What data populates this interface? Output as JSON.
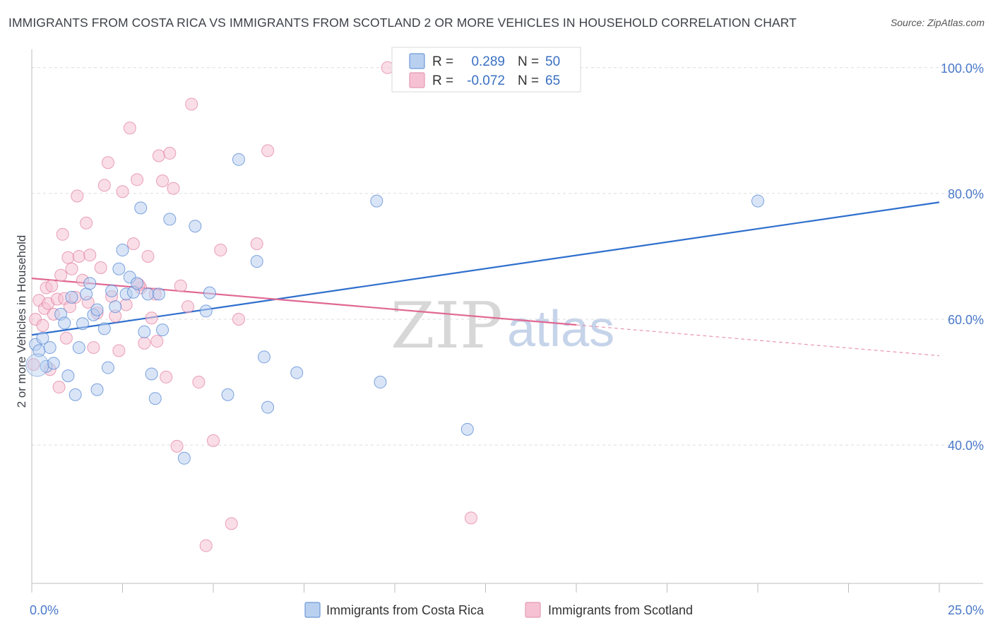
{
  "header": {
    "title": "IMMIGRANTS FROM COSTA RICA VS IMMIGRANTS FROM SCOTLAND 2 OR MORE VEHICLES IN HOUSEHOLD CORRELATION CHART",
    "source": "Source: ZipAtlas.com"
  },
  "legend": {
    "r_label": "R =",
    "n_label": "N =",
    "series": [
      {
        "r": "0.289",
        "n": "50"
      },
      {
        "r": "-0.072",
        "n": "65"
      }
    ]
  },
  "bottom_legend": [
    "Immigrants from Costa Rica",
    "Immigrants from Scotland"
  ],
  "watermark": {
    "zip": "ZIP",
    "atlas": "atlas"
  },
  "colors": {
    "blue": "#4a7fd0",
    "blue_fill": "#b9d0f0",
    "blue_line": "#2f6fcd",
    "pink": "#e07a9e",
    "pink_fill": "#f6c2d3",
    "pink_line": "#e06893"
  },
  "chart_data": {
    "type": "scatter",
    "title": "IMMIGRANTS FROM COSTA RICA VS IMMIGRANTS FROM SCOTLAND 2 OR MORE VEHICLES IN HOUSEHOLD CORRELATION CHART",
    "xlabel": "",
    "ylabel": "2 or more Vehicles in Household",
    "xlim": [
      0,
      25
    ],
    "ylim": [
      18,
      102
    ],
    "x_tick_labels": [
      "0.0%",
      "25.0%"
    ],
    "y_ticks": [
      40,
      60,
      80,
      100
    ],
    "y_tick_labels": [
      "40.0%",
      "60.0%",
      "80.0%",
      "100.0%"
    ],
    "grid": true,
    "legend_position": "top-center",
    "series": [
      {
        "name": "Immigrants from Costa Rica",
        "r": 0.289,
        "n": 50,
        "trend": {
          "x": [
            0,
            25
          ],
          "y": [
            57.5,
            78.6
          ]
        },
        "points": [
          [
            0.1,
            56
          ],
          [
            0.2,
            55
          ],
          [
            0.3,
            57
          ],
          [
            0.4,
            52.5
          ],
          [
            0.5,
            55.5
          ],
          [
            0.6,
            53
          ],
          [
            0.8,
            60.8
          ],
          [
            0.9,
            59.4
          ],
          [
            1.0,
            51
          ],
          [
            1.1,
            63.5
          ],
          [
            1.2,
            48
          ],
          [
            1.3,
            55.5
          ],
          [
            1.4,
            59.3
          ],
          [
            1.5,
            64
          ],
          [
            1.6,
            65.7
          ],
          [
            1.7,
            60.7
          ],
          [
            1.8,
            61.5
          ],
          [
            1.8,
            48.8
          ],
          [
            2.0,
            58.5
          ],
          [
            2.1,
            52.3
          ],
          [
            2.2,
            64.5
          ],
          [
            2.3,
            62
          ],
          [
            2.4,
            68
          ],
          [
            2.5,
            71
          ],
          [
            2.6,
            64
          ],
          [
            2.7,
            66.7
          ],
          [
            2.8,
            64.3
          ],
          [
            2.9,
            65.7
          ],
          [
            3.0,
            77.7
          ],
          [
            3.1,
            58
          ],
          [
            3.2,
            64
          ],
          [
            3.3,
            51.3
          ],
          [
            3.4,
            47.4
          ],
          [
            3.5,
            64
          ],
          [
            3.6,
            58.3
          ],
          [
            3.8,
            75.9
          ],
          [
            4.2,
            37.9
          ],
          [
            4.5,
            74.8
          ],
          [
            4.8,
            61.3
          ],
          [
            4.9,
            64.2
          ],
          [
            5.4,
            48
          ],
          [
            5.7,
            85.4
          ],
          [
            6.2,
            69.2
          ],
          [
            6.4,
            54
          ],
          [
            6.5,
            46
          ],
          [
            7.3,
            51.5
          ],
          [
            9.5,
            78.8
          ],
          [
            9.6,
            50
          ],
          [
            12.0,
            42.5
          ],
          [
            20.0,
            78.8
          ]
        ]
      },
      {
        "name": "Immigrants from Scotland",
        "r": -0.072,
        "n": 65,
        "trend": {
          "x": [
            0,
            15
          ],
          "y": [
            66.5,
            59.1
          ]
        },
        "trend_dashed": {
          "x": [
            15,
            25
          ],
          "y": [
            59.1,
            54.2
          ]
        },
        "points": [
          [
            0.05,
            52.8
          ],
          [
            0.1,
            60
          ],
          [
            0.2,
            63
          ],
          [
            0.3,
            59
          ],
          [
            0.35,
            61.7
          ],
          [
            0.4,
            65
          ],
          [
            0.45,
            62.5
          ],
          [
            0.5,
            52
          ],
          [
            0.55,
            65.3
          ],
          [
            0.6,
            60.8
          ],
          [
            0.7,
            63.2
          ],
          [
            0.75,
            49.2
          ],
          [
            0.8,
            67
          ],
          [
            0.85,
            73.5
          ],
          [
            0.9,
            63.3
          ],
          [
            1.0,
            69.8
          ],
          [
            1.05,
            62
          ],
          [
            1.1,
            68
          ],
          [
            1.2,
            63.5
          ],
          [
            1.25,
            79.6
          ],
          [
            1.3,
            70
          ],
          [
            1.4,
            66.2
          ],
          [
            1.5,
            75.3
          ],
          [
            1.6,
            70.2
          ],
          [
            1.7,
            55.5
          ],
          [
            1.8,
            61
          ],
          [
            1.9,
            68.2
          ],
          [
            2.0,
            81.3
          ],
          [
            2.1,
            84.9
          ],
          [
            2.2,
            63.6
          ],
          [
            2.3,
            60.5
          ],
          [
            2.4,
            55
          ],
          [
            2.5,
            80.3
          ],
          [
            2.6,
            62.3
          ],
          [
            2.7,
            90.4
          ],
          [
            2.8,
            72
          ],
          [
            2.9,
            82.2
          ],
          [
            3.0,
            65
          ],
          [
            3.1,
            56.2
          ],
          [
            3.2,
            70
          ],
          [
            3.3,
            60.2
          ],
          [
            3.4,
            64
          ],
          [
            3.5,
            86
          ],
          [
            3.6,
            82
          ],
          [
            3.7,
            50.8
          ],
          [
            3.8,
            86.4
          ],
          [
            3.9,
            80.8
          ],
          [
            4.0,
            39.8
          ],
          [
            4.1,
            65.3
          ],
          [
            4.4,
            94.2
          ],
          [
            4.6,
            50
          ],
          [
            4.8,
            24
          ],
          [
            5.0,
            40.7
          ],
          [
            5.2,
            71
          ],
          [
            5.5,
            27.5
          ],
          [
            5.7,
            60
          ],
          [
            6.2,
            72
          ],
          [
            6.5,
            86.8
          ],
          [
            9.8,
            100
          ],
          [
            12.1,
            28.4
          ],
          [
            3.45,
            56.5
          ],
          [
            2.95,
            65.5
          ],
          [
            1.55,
            62.7
          ],
          [
            0.95,
            57
          ],
          [
            4.3,
            62
          ]
        ]
      }
    ]
  }
}
